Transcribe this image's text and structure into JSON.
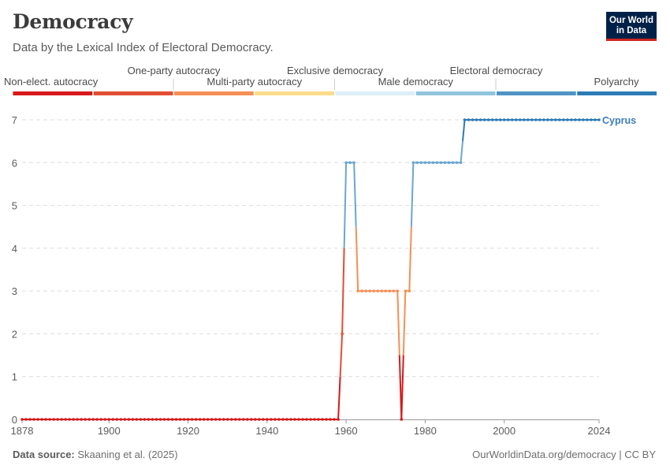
{
  "header": {
    "title": "Democracy",
    "subtitle": "Data by the Lexical Index of Electoral Democracy.",
    "logo_line1": "Our World",
    "logo_line2": "in Data"
  },
  "footer": {
    "source_label": "Data source:",
    "source_text": "Skaaning et al. (2025)",
    "right_text": "OurWorldinData.org/democracy | CC BY"
  },
  "legend": {
    "categories": [
      {
        "label": "Non-elect. autocracy",
        "color": "#d7191c"
      },
      {
        "label": "One-party autocracy",
        "color": "#e34d32"
      },
      {
        "label": "Multi-party autocracy",
        "color": "#f58f55"
      },
      {
        "label": "Exclusive democracy",
        "color": "#fbdc8a"
      },
      {
        "label": "Male democracy",
        "color": "#ddeef7"
      },
      {
        "label": "Electoral democracy",
        "color": "#92c4de"
      },
      {
        "label": "Polyarchy",
        "color": "#4f94c4"
      },
      {
        "label": "",
        "color": "#2c7bb6"
      }
    ]
  },
  "chart_data": {
    "type": "line",
    "title": "Democracy",
    "subtitle": "Data by the Lexical Index of Electoral Democracy.",
    "xlabel": "",
    "ylabel": "",
    "xlim": [
      1878,
      2024
    ],
    "ylim": [
      0,
      7
    ],
    "x_ticks": [
      1878,
      1900,
      1920,
      1940,
      1960,
      1980,
      2000,
      2024
    ],
    "y_ticks": [
      0,
      1,
      2,
      3,
      4,
      5,
      6,
      7
    ],
    "grid": "horizontal dashed",
    "series": [
      {
        "name": "Cyprus",
        "color": "#3c7db8",
        "points": [
          [
            1878,
            0
          ],
          [
            1958,
            0
          ],
          [
            1959,
            2
          ],
          [
            1960,
            6
          ],
          [
            1961,
            6
          ],
          [
            1962,
            6
          ],
          [
            1963,
            3
          ],
          [
            1964,
            3
          ],
          [
            1965,
            3
          ],
          [
            1966,
            3
          ],
          [
            1967,
            3
          ],
          [
            1968,
            3
          ],
          [
            1969,
            3
          ],
          [
            1970,
            3
          ],
          [
            1971,
            3
          ],
          [
            1972,
            3
          ],
          [
            1973,
            3
          ],
          [
            1974,
            0
          ],
          [
            1975,
            3
          ],
          [
            1976,
            3
          ],
          [
            1977,
            6
          ],
          [
            1978,
            6
          ],
          [
            1979,
            6
          ],
          [
            1980,
            6
          ],
          [
            1981,
            6
          ],
          [
            1982,
            6
          ],
          [
            1983,
            6
          ],
          [
            1984,
            6
          ],
          [
            1985,
            6
          ],
          [
            1986,
            6
          ],
          [
            1987,
            6
          ],
          [
            1988,
            6
          ],
          [
            1989,
            6
          ],
          [
            1990,
            7
          ],
          [
            2024,
            7
          ]
        ]
      }
    ]
  }
}
